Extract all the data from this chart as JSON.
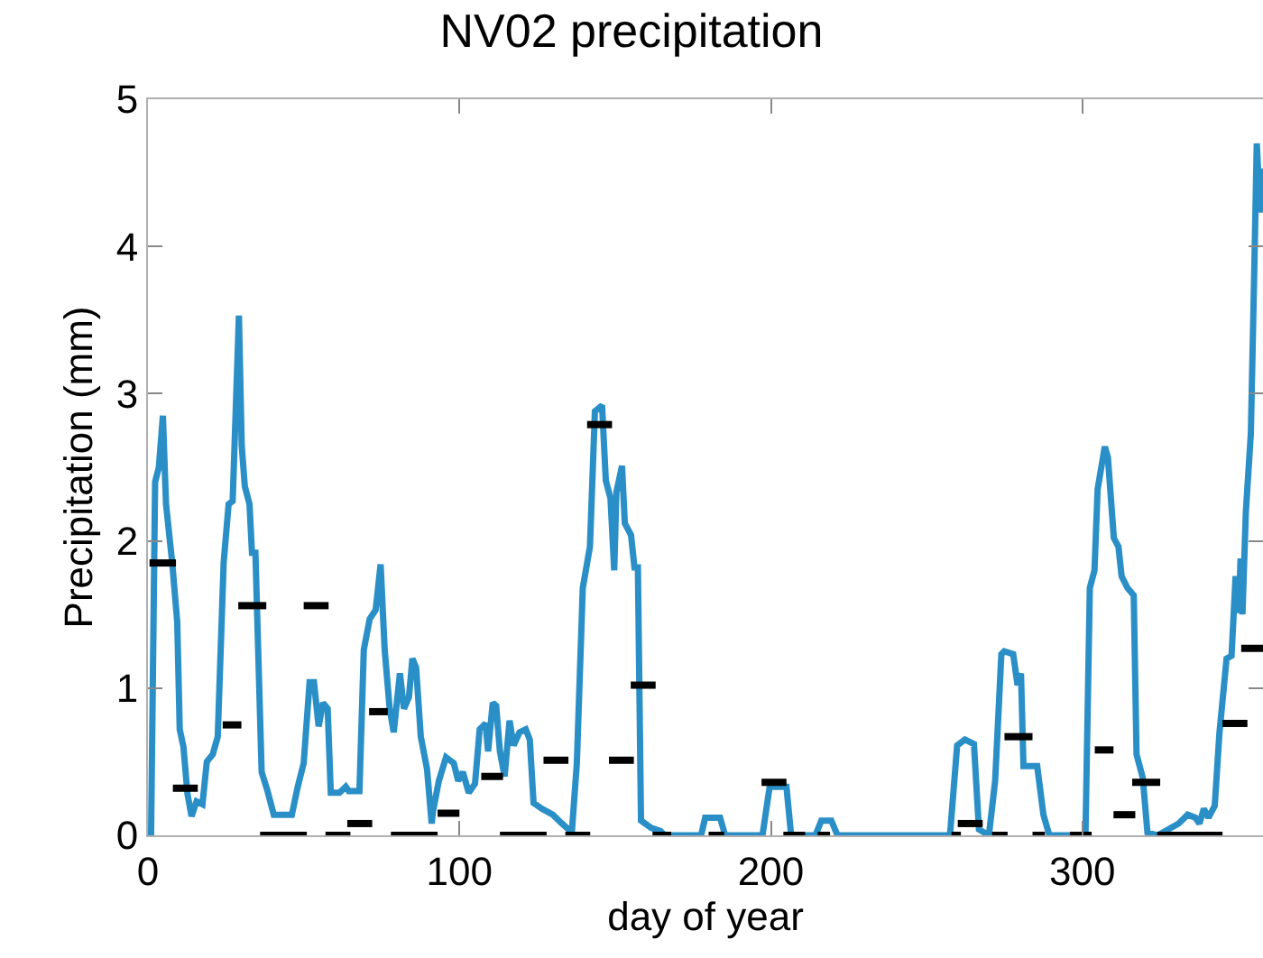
{
  "chart_data": {
    "type": "line",
    "title": "NV02 precipitation",
    "xlabel": "day of year",
    "ylabel": "Precipitation (mm)",
    "xlim": [
      0,
      358
    ],
    "ylim": [
      0,
      5
    ],
    "xticks": [
      0,
      100,
      200,
      300
    ],
    "yticks": [
      0,
      1,
      2,
      3,
      4,
      5
    ],
    "grid": false,
    "legend": false,
    "marker": "none",
    "line_style": "solid",
    "series": [
      {
        "color": "#2a8fc6",
        "x": [
          0.6,
          1,
          2.3,
          3.5,
          4.8,
          5.8,
          7.8,
          9.4,
          10.2,
          11.4,
          12.7,
          14,
          15.6,
          17.5,
          18.9,
          20.8,
          22.4,
          24.3,
          25.9,
          27.2,
          29.2,
          30.1,
          31.1,
          32.6,
          33.4,
          34.5,
          36.5,
          38.4,
          40.4,
          43.3,
          46.2,
          48.1,
          50,
          51.9,
          53.3,
          54.8,
          56.2,
          57.7,
          58.7,
          61.5,
          63.5,
          64.5,
          67.9,
          69.3,
          71.2,
          73.1,
          74.7,
          76,
          77.6,
          78.9,
          80.9,
          82.2,
          83.8,
          84.9,
          86.1,
          87.6,
          89.6,
          91.1,
          91.5,
          93.4,
          95.7,
          98.2,
          99.6,
          101.1,
          103,
          105,
          106.5,
          108.4,
          109.2,
          110.7,
          111.8,
          113,
          114.5,
          116.1,
          117.4,
          119.3,
          121.3,
          122.6,
          123.8,
          126.5,
          130,
          132.9,
          136.1,
          137.7,
          139.6,
          141.9,
          143.5,
          145.8,
          147,
          148.5,
          149.7,
          150.4,
          152.2,
          153.1,
          155.1,
          156.2,
          157.3,
          158.3,
          161.6,
          164.5,
          166,
          177.6,
          178.9,
          183.7,
          185.3,
          197.3,
          199.6,
          205,
          206.5,
          214.3,
          216.2,
          219.4,
          221.4,
          257.5,
          259.8,
          262.3,
          265.2,
          266.8,
          270,
          272,
          274,
          274.9,
          277.8,
          279.2,
          280.3,
          281.1,
          285.5,
          287.5,
          289.4,
          301,
          302.4,
          303.9,
          304.9,
          307.2,
          308.2,
          310.1,
          311.6,
          312.6,
          314.5,
          316.5,
          317.4,
          319.4,
          320.9,
          324.2,
          330.9,
          333.8,
          336.3,
          337.6,
          339,
          340.5,
          342.5,
          344,
          346.3,
          347.9,
          349.2,
          350.2,
          350.8,
          351.4,
          352.5,
          354.1,
          355.2,
          356,
          357.1,
          357.9
        ],
        "values": [
          0,
          0,
          2.4,
          2.5,
          2.85,
          2.25,
          1.85,
          1.45,
          0.72,
          0.6,
          0.28,
          0.13,
          0.23,
          0.21,
          0.5,
          0.55,
          0.67,
          1.85,
          2.25,
          2.27,
          3.53,
          2.65,
          2.37,
          2.25,
          1.92,
          1.92,
          0.43,
          0.3,
          0.14,
          0.14,
          0.14,
          0.33,
          0.49,
          1.04,
          1.04,
          0.74,
          0.9,
          0.86,
          0.29,
          0.29,
          0.33,
          0.3,
          0.3,
          1.26,
          1.47,
          1.53,
          1.84,
          1.26,
          0.86,
          0.7,
          1.1,
          0.86,
          0.94,
          1.2,
          1.14,
          0.67,
          0.45,
          0.08,
          0.16,
          0.37,
          0.53,
          0.49,
          0.37,
          0.43,
          0.29,
          0.35,
          0.72,
          0.76,
          0.57,
          0.9,
          0.88,
          0.57,
          0.4,
          0.78,
          0.61,
          0.7,
          0.72,
          0.65,
          0.22,
          0.18,
          0.14,
          0.08,
          0.02,
          0.49,
          1.68,
          1.96,
          2.88,
          2.92,
          2.41,
          2.29,
          1.8,
          2.33,
          2.51,
          2.12,
          2.04,
          1.82,
          1.82,
          0.1,
          0.05,
          0.03,
          0,
          0,
          0.12,
          0.12,
          0,
          0,
          0.33,
          0.33,
          0,
          0,
          0.1,
          0.1,
          0,
          0,
          0.61,
          0.65,
          0.62,
          0.04,
          0,
          0.37,
          1.23,
          1.25,
          1.23,
          1.02,
          1.1,
          0.47,
          0.47,
          0.14,
          0,
          0,
          1.68,
          1.8,
          2.35,
          2.64,
          2.57,
          2.02,
          1.96,
          1.76,
          1.68,
          1.63,
          0.55,
          0.39,
          0.02,
          0,
          0.08,
          0.14,
          0.12,
          0.08,
          0.18,
          0.12,
          0.2,
          0.69,
          1.2,
          1.22,
          1.76,
          1.51,
          1.88,
          1.5,
          2.2,
          2.73,
          3.84,
          4.7,
          4.23,
          4.53
        ]
      },
      {
        "color": "#000000",
        "x": [
          0.5,
          9,
          null,
          8,
          16,
          null,
          24,
          30,
          null,
          29,
          38,
          null,
          36,
          51,
          null,
          50,
          58,
          null,
          57,
          65,
          null,
          64,
          72,
          null,
          71,
          77,
          null,
          78,
          93,
          null,
          93,
          100,
          null,
          107,
          114,
          null,
          113,
          128,
          null,
          127,
          135,
          null,
          134,
          142,
          null,
          141,
          149,
          null,
          148,
          156,
          null,
          155,
          163,
          null,
          162,
          168,
          null,
          180,
          185,
          null,
          197,
          205,
          null,
          204,
          211,
          null,
          215,
          219,
          null,
          258,
          261,
          null,
          260,
          268,
          null,
          271,
          276,
          null,
          275,
          284,
          null,
          284,
          288,
          null,
          296,
          303,
          null,
          304,
          310,
          null,
          310,
          317,
          null,
          316,
          325,
          null,
          324,
          345,
          null,
          345,
          353,
          null,
          351,
          358
        ],
        "values": [
          1.85,
          1.85,
          null,
          0.32,
          0.32,
          null,
          0.75,
          0.75,
          null,
          1.56,
          1.56,
          null,
          0,
          0,
          null,
          1.56,
          1.56,
          null,
          0,
          0,
          null,
          0.08,
          0.08,
          null,
          0.84,
          0.84,
          null,
          0,
          0,
          null,
          0.15,
          0.15,
          null,
          0.4,
          0.4,
          null,
          0,
          0,
          null,
          0.51,
          0.51,
          null,
          0,
          0,
          null,
          2.79,
          2.79,
          null,
          0.51,
          0.51,
          null,
          1.02,
          1.02,
          null,
          0,
          0,
          null,
          0,
          0,
          null,
          0.36,
          0.36,
          null,
          0,
          0,
          null,
          0,
          0,
          null,
          0,
          0,
          null,
          0.08,
          0.08,
          null,
          0,
          0,
          null,
          0.67,
          0.67,
          null,
          0,
          0,
          null,
          0,
          0,
          null,
          0.58,
          0.58,
          null,
          0.14,
          0.14,
          null,
          0.36,
          0.36,
          null,
          0,
          0,
          null,
          0.76,
          0.76,
          null,
          1.27,
          1.27
        ]
      }
    ]
  }
}
